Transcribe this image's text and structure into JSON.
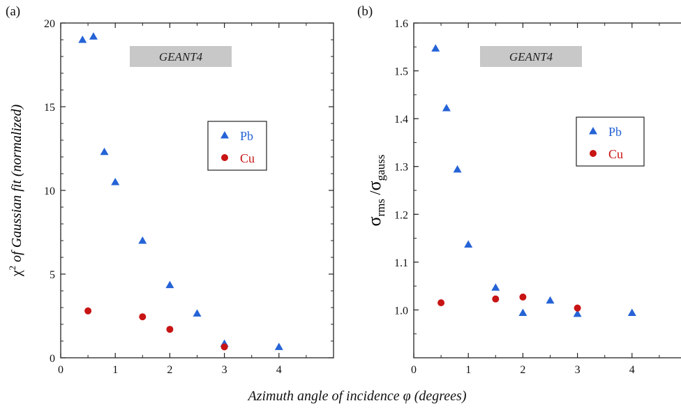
{
  "xlabel": "Azimuth angle of incidence φ (degrees)",
  "colors": {
    "pb": "#2563d6",
    "cu": "#c81414",
    "banner": "#c8c8c8",
    "axis": "#222222"
  },
  "chart_data": [
    {
      "type": "scatter",
      "panel": "(a)",
      "banner": "GEANT4",
      "ylabel": {
        "symbol": "χ",
        "sup": "2",
        "text": " of Gaussian fit (normalized)"
      },
      "xlim": [
        0,
        5
      ],
      "ylim": [
        0,
        20
      ],
      "xticks": [
        0,
        1,
        2,
        3,
        4
      ],
      "yticks": [
        0,
        5,
        10,
        15,
        20
      ],
      "yticklabels": [
        "0",
        "5",
        "10",
        "15",
        "20"
      ],
      "legend": {
        "placement": "right-middle",
        "entries": [
          "Pb",
          "Cu"
        ]
      },
      "series": [
        {
          "name": "Pb",
          "marker": "triangle",
          "x": [
            0.4,
            0.6,
            0.8,
            1.0,
            1.5,
            2.0,
            2.5,
            3.0,
            4.0
          ],
          "y": [
            19.0,
            19.2,
            12.3,
            10.5,
            7.0,
            4.35,
            2.65,
            0.85,
            0.65
          ]
        },
        {
          "name": "Cu",
          "marker": "circle",
          "x": [
            0.5,
            1.5,
            2.0,
            3.0
          ],
          "y": [
            2.8,
            2.45,
            1.7,
            0.65
          ]
        }
      ]
    },
    {
      "type": "scatter",
      "panel": "(b)",
      "banner": "GEANT4",
      "ylabel": {
        "symbol": "σ",
        "sub1": "rms",
        "sep": " /",
        "symbol2": "σ",
        "sub2": "gauss"
      },
      "xlim": [
        0,
        5
      ],
      "ylim": [
        0.9,
        1.6
      ],
      "xticks": [
        0,
        1,
        2,
        3,
        4
      ],
      "yticks": [
        1.0,
        1.1,
        1.2,
        1.3,
        1.4,
        1.5,
        1.6
      ],
      "yticklabels": [
        "1.0",
        "1.1",
        "1.2",
        "1.3",
        "1.4",
        "1.5",
        "1.6"
      ],
      "legend": {
        "placement": "right-upper",
        "entries": [
          "Pb",
          "Cu"
        ]
      },
      "series": [
        {
          "name": "Pb",
          "marker": "triangle",
          "x": [
            0.4,
            0.6,
            0.8,
            1.0,
            1.5,
            2.0,
            2.5,
            3.0,
            4.0
          ],
          "y": [
            1.547,
            1.422,
            1.294,
            1.137,
            1.047,
            0.994,
            1.02,
            0.992,
            0.994
          ]
        },
        {
          "name": "Cu",
          "marker": "circle",
          "x": [
            0.5,
            1.5,
            2.0,
            3.0
          ],
          "y": [
            1.015,
            1.023,
            1.027,
            1.004
          ]
        }
      ]
    }
  ]
}
